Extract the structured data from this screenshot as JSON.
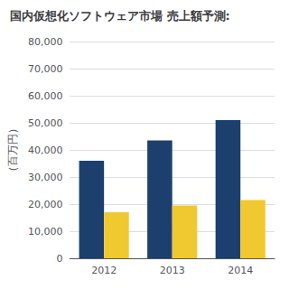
{
  "chart_data": {
    "type": "bar",
    "title": "国内仮想化ソフトウェア市場 売上額予測:",
    "ylabel": "（百万円）",
    "categories": [
      2012,
      2013,
      2014
    ],
    "series": [
      {
        "color": "#1c3f6e",
        "values": [
          36000,
          43500,
          51000
        ]
      },
      {
        "color": "#f0c830",
        "values": [
          17000,
          19500,
          21500
        ]
      }
    ],
    "ylim": [
      0,
      80000
    ],
    "yticks": [
      0,
      {
        "value": 10000,
        "label": "10,000"
      },
      {
        "value": 20000,
        "label": "20,000"
      },
      {
        "value": 30000,
        "label": "30,000"
      },
      {
        "value": 40000,
        "label": "40,000"
      },
      {
        "value": 50000,
        "label": "50,000"
      },
      {
        "value": 60000,
        "label": "60,000"
      },
      {
        "value": 70000,
        "label": "70,000"
      },
      {
        "value": 80000,
        "label": "80,000"
      }
    ],
    "grid": true
  }
}
